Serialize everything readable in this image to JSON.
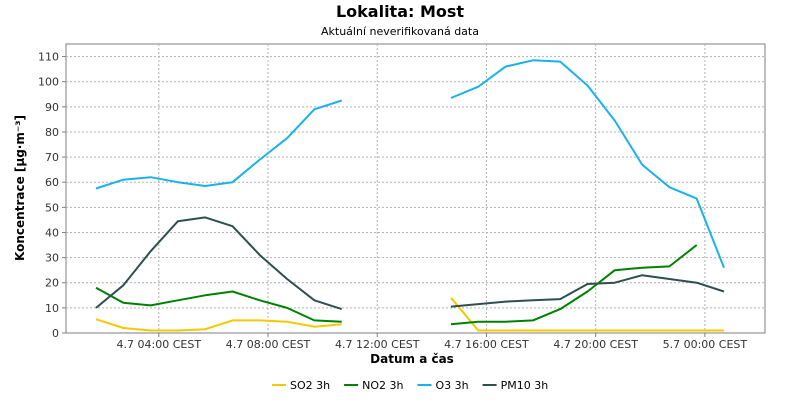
{
  "chart_data": {
    "type": "line",
    "title": "Lokalita: Most",
    "subtitle": "Aktuální neverifikovaná data",
    "xlabel": "Datum a čas",
    "ylabel": "Koncentrace [µg·m⁻³]",
    "ylim": [
      0,
      115
    ],
    "yticks": [
      0,
      10,
      20,
      30,
      40,
      50,
      60,
      70,
      80,
      90,
      100,
      110
    ],
    "xlim": [
      0,
      24
    ],
    "x": [
      0,
      1,
      2,
      3,
      4,
      5,
      6,
      7,
      8,
      9,
      13,
      14,
      15,
      16,
      17,
      18,
      19,
      20,
      21,
      22,
      23
    ],
    "xticks": [
      {
        "x": 2.3,
        "label": "4.7 04:00 CEST"
      },
      {
        "x": 6.3,
        "label": "4.7 08:00 CEST"
      },
      {
        "x": 10.3,
        "label": "4.7 12:00 CEST"
      },
      {
        "x": 14.3,
        "label": "4.7 16:00 CEST"
      },
      {
        "x": 18.3,
        "label": "4.7 20:00 CEST"
      },
      {
        "x": 22.3,
        "label": "5.7 00:00 CEST"
      }
    ],
    "grid": true,
    "legend_position": "bottom",
    "series": [
      {
        "name": "SO2 3h",
        "color": "#f5c800",
        "values": [
          5.5,
          2,
          1,
          1,
          1.5,
          5,
          5,
          4.5,
          2.5,
          3.5,
          14,
          1,
          1,
          1,
          1,
          1,
          1,
          1,
          1,
          1,
          1
        ]
      },
      {
        "name": "NO2 3h",
        "color": "#008000",
        "values": [
          18,
          12,
          11,
          13,
          15,
          16.5,
          13,
          10,
          5,
          4.5,
          3.5,
          4.5,
          4.5,
          5,
          9.5,
          16.5,
          25,
          26,
          26.5,
          35,
          null
        ]
      },
      {
        "name": "O3 3h",
        "color": "#1ab2ea",
        "values": [
          57.5,
          61,
          62,
          60,
          58.5,
          60,
          69,
          77.5,
          89,
          92.5,
          93.5,
          98,
          106,
          108.5,
          108,
          98.5,
          84.5,
          67,
          58,
          53.5,
          26
        ]
      },
      {
        "name": "PM10 3h",
        "color": "#2f4f4f",
        "values": [
          10,
          19,
          32.5,
          44.5,
          46,
          42.5,
          31,
          21.5,
          13,
          9.5,
          10.5,
          11.5,
          12.5,
          13,
          13.5,
          19.5,
          20,
          23,
          21.5,
          20,
          16.5
        ]
      }
    ]
  }
}
